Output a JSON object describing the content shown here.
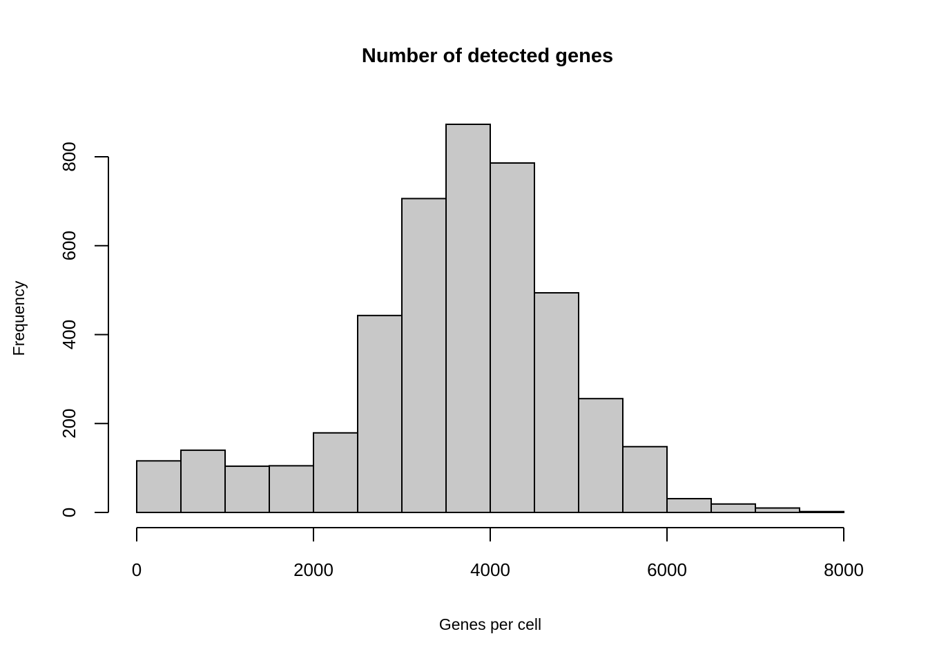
{
  "chart_data": {
    "type": "bar",
    "title": "Number of detected genes",
    "xlabel": "Genes per cell",
    "ylabel": "Frequency",
    "bin_edges": [
      0,
      500,
      1000,
      1500,
      2000,
      2500,
      3000,
      3500,
      4000,
      4500,
      5000,
      5500,
      6000,
      6500,
      7000,
      7500,
      8000
    ],
    "values": [
      116,
      140,
      104,
      105,
      179,
      443,
      706,
      873,
      786,
      494,
      256,
      148,
      31,
      19,
      10,
      2
    ],
    "xlim": [
      0,
      8000
    ],
    "ylim": [
      0,
      873
    ],
    "x_ticks": [
      0,
      2000,
      4000,
      6000,
      8000
    ],
    "y_ticks": [
      0,
      200,
      400,
      600,
      800
    ],
    "grid": false,
    "legend": "none",
    "bar_fill": "#c8c8c8",
    "bar_stroke": "#000000"
  }
}
